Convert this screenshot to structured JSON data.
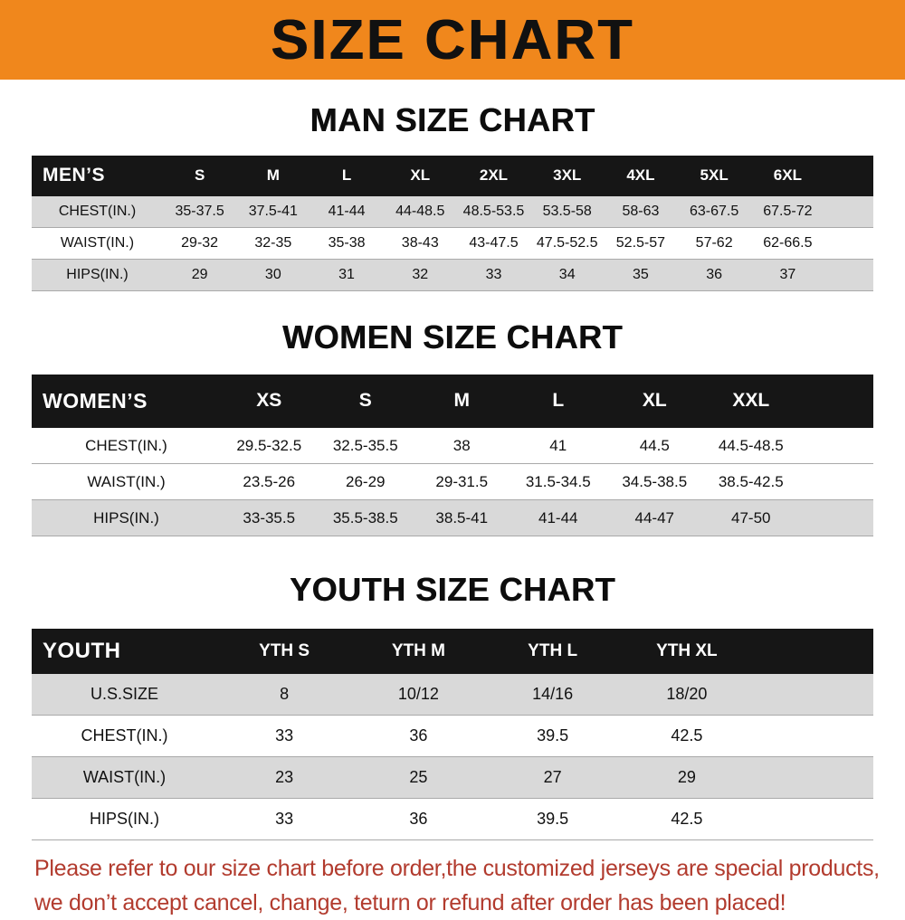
{
  "banner": {
    "title": "SIZE CHART"
  },
  "colors": {
    "banner_bg": "#f0871c",
    "table_header_bg": "#161616",
    "stripe_gray": "#d9d9d9",
    "footer_text": "#b23b2e"
  },
  "sections": [
    {
      "id": "men",
      "heading": "MAN SIZE CHART",
      "columns": [
        "MEN’S",
        "S",
        "M",
        "L",
        "XL",
        "2XL",
        "3XL",
        "4XL",
        "5XL",
        "6XL"
      ],
      "rows": [
        {
          "label": "CHEST(IN.)",
          "shade": "gray",
          "values": [
            "35-37.5",
            "37.5-41",
            "41-44",
            "44-48.5",
            "48.5-53.5",
            "53.5-58",
            "58-63",
            "63-67.5",
            "67.5-72"
          ]
        },
        {
          "label": "WAIST(IN.)",
          "shade": "white",
          "values": [
            "29-32",
            "32-35",
            "35-38",
            "38-43",
            "43-47.5",
            "47.5-52.5",
            "52.5-57",
            "57-62",
            "62-66.5"
          ]
        },
        {
          "label": "HIPS(IN.)",
          "shade": "gray",
          "values": [
            "29",
            "30",
            "31",
            "32",
            "33",
            "34",
            "35",
            "36",
            "37"
          ]
        }
      ]
    },
    {
      "id": "women",
      "heading": "WOMEN SIZE CHART",
      "columns": [
        "WOMEN’S",
        "XS",
        "S",
        "M",
        "L",
        "XL",
        "XXL"
      ],
      "rows": [
        {
          "label": "CHEST(IN.)",
          "shade": "white",
          "values": [
            "29.5-32.5",
            "32.5-35.5",
            "38",
            "41",
            "44.5",
            "44.5-48.5"
          ]
        },
        {
          "label": "WAIST(IN.)",
          "shade": "white",
          "values": [
            "23.5-26",
            "26-29",
            "29-31.5",
            "31.5-34.5",
            "34.5-38.5",
            "38.5-42.5"
          ]
        },
        {
          "label": "HIPS(IN.)",
          "shade": "gray",
          "values": [
            "33-35.5",
            "35.5-38.5",
            "38.5-41",
            "41-44",
            "44-47",
            "47-50"
          ]
        }
      ]
    },
    {
      "id": "youth",
      "heading": "YOUTH SIZE CHART",
      "columns": [
        "YOUTH",
        "YTH S",
        "YTH M",
        "YTH L",
        "YTH XL"
      ],
      "rows": [
        {
          "label": "U.S.SIZE",
          "shade": "gray",
          "values": [
            "8",
            "10/12",
            "14/16",
            "18/20"
          ]
        },
        {
          "label": "CHEST(IN.)",
          "shade": "white",
          "values": [
            "33",
            "36",
            "39.5",
            "42.5"
          ]
        },
        {
          "label": "WAIST(IN.)",
          "shade": "gray",
          "values": [
            "23",
            "25",
            "27",
            "29"
          ]
        },
        {
          "label": "HIPS(IN.)",
          "shade": "white",
          "values": [
            "33",
            "36",
            "39.5",
            "42.5"
          ]
        }
      ]
    }
  ],
  "footer": {
    "line1": "Please refer to our size chart before order,the customized jerseys are special products,",
    "line2": "we don’t accept cancel, change, teturn or refund after order has been placed!"
  }
}
